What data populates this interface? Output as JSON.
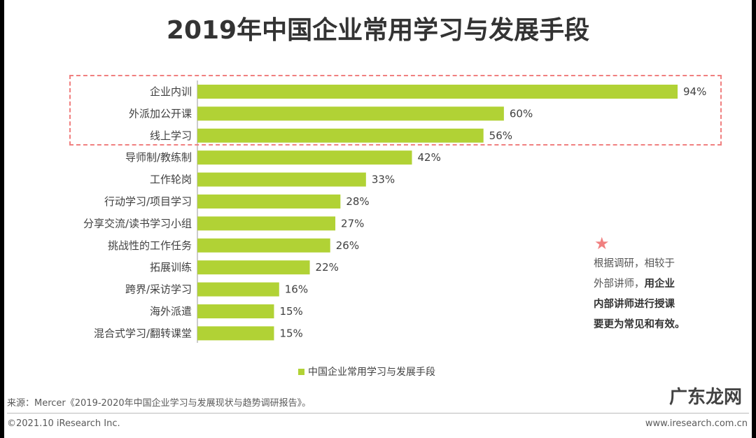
{
  "chart_data": {
    "type": "bar",
    "orientation": "horizontal",
    "title": "2019年中国企业常用学习与发展手段",
    "categories": [
      "企业内训",
      "外派加公开课",
      "线上学习",
      "导师制/教练制",
      "工作轮岗",
      "行动学习/项目学习",
      "分享交流/读书学习小组",
      "挑战性的工作任务",
      "拓展训练",
      "跨界/采访学习",
      "海外派遣",
      "混合式学习/翻转课堂"
    ],
    "series": [
      {
        "name": "中国企业常用学习与发展手段",
        "values": [
          94,
          60,
          56,
          42,
          33,
          28,
          27,
          26,
          22,
          16,
          15,
          15
        ],
        "color": "#b1d235"
      }
    ],
    "value_suffix": "%",
    "xlim": [
      0,
      100
    ],
    "legend": "bottom",
    "grid": false
  },
  "note": {
    "lines": [
      "根据调研，相较于",
      "外部讲师，",
      "用企业",
      "内部讲师进行授课",
      "要更为常见和有效。"
    ],
    "star_color": "#f08080"
  },
  "footer": {
    "source": "来源：Mercer《2019-2020年中国企业学习与发展现状与趋势调研报告》。",
    "copyright": "©2021.10 iResearch Inc.",
    "site": "www.iresearch.com.cn",
    "watermark": "广东龙网"
  }
}
